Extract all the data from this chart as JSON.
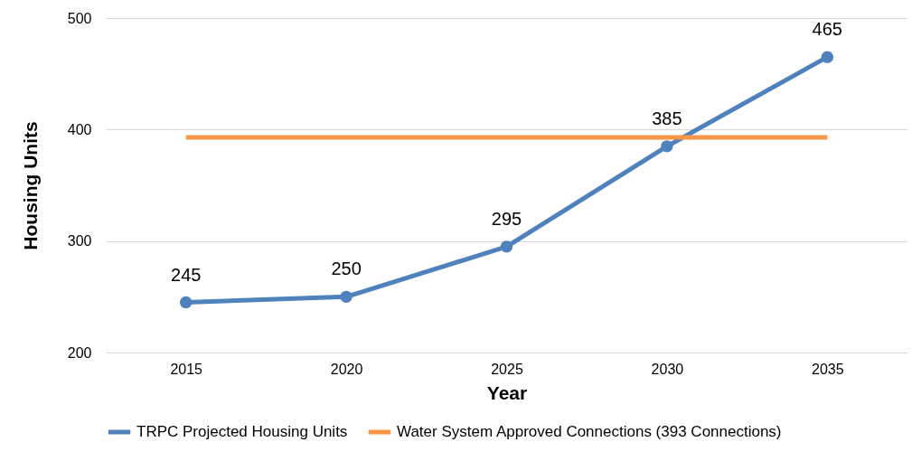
{
  "chart_data": {
    "type": "line",
    "xlabel": "Year",
    "ylabel": "Housing Units",
    "categories": [
      "2015",
      "2020",
      "2025",
      "2030",
      "2035"
    ],
    "series": [
      {
        "name": "TRPC Projected Housing Units",
        "color": "#4f81bd",
        "values": [
          245,
          250,
          295,
          385,
          465
        ],
        "value_labels": [
          "245",
          "250",
          "295",
          "385",
          "465"
        ],
        "marker": "circle"
      },
      {
        "name": "Water System Approved Connections (393 Connections)",
        "color": "#f79646",
        "values": [
          393,
          393,
          393,
          393,
          393
        ],
        "marker": "none"
      }
    ],
    "ylim": [
      200,
      500
    ],
    "yticks": [
      200,
      300,
      400,
      500
    ],
    "grid": "y",
    "legend": "bottom",
    "line_style": "solid"
  }
}
